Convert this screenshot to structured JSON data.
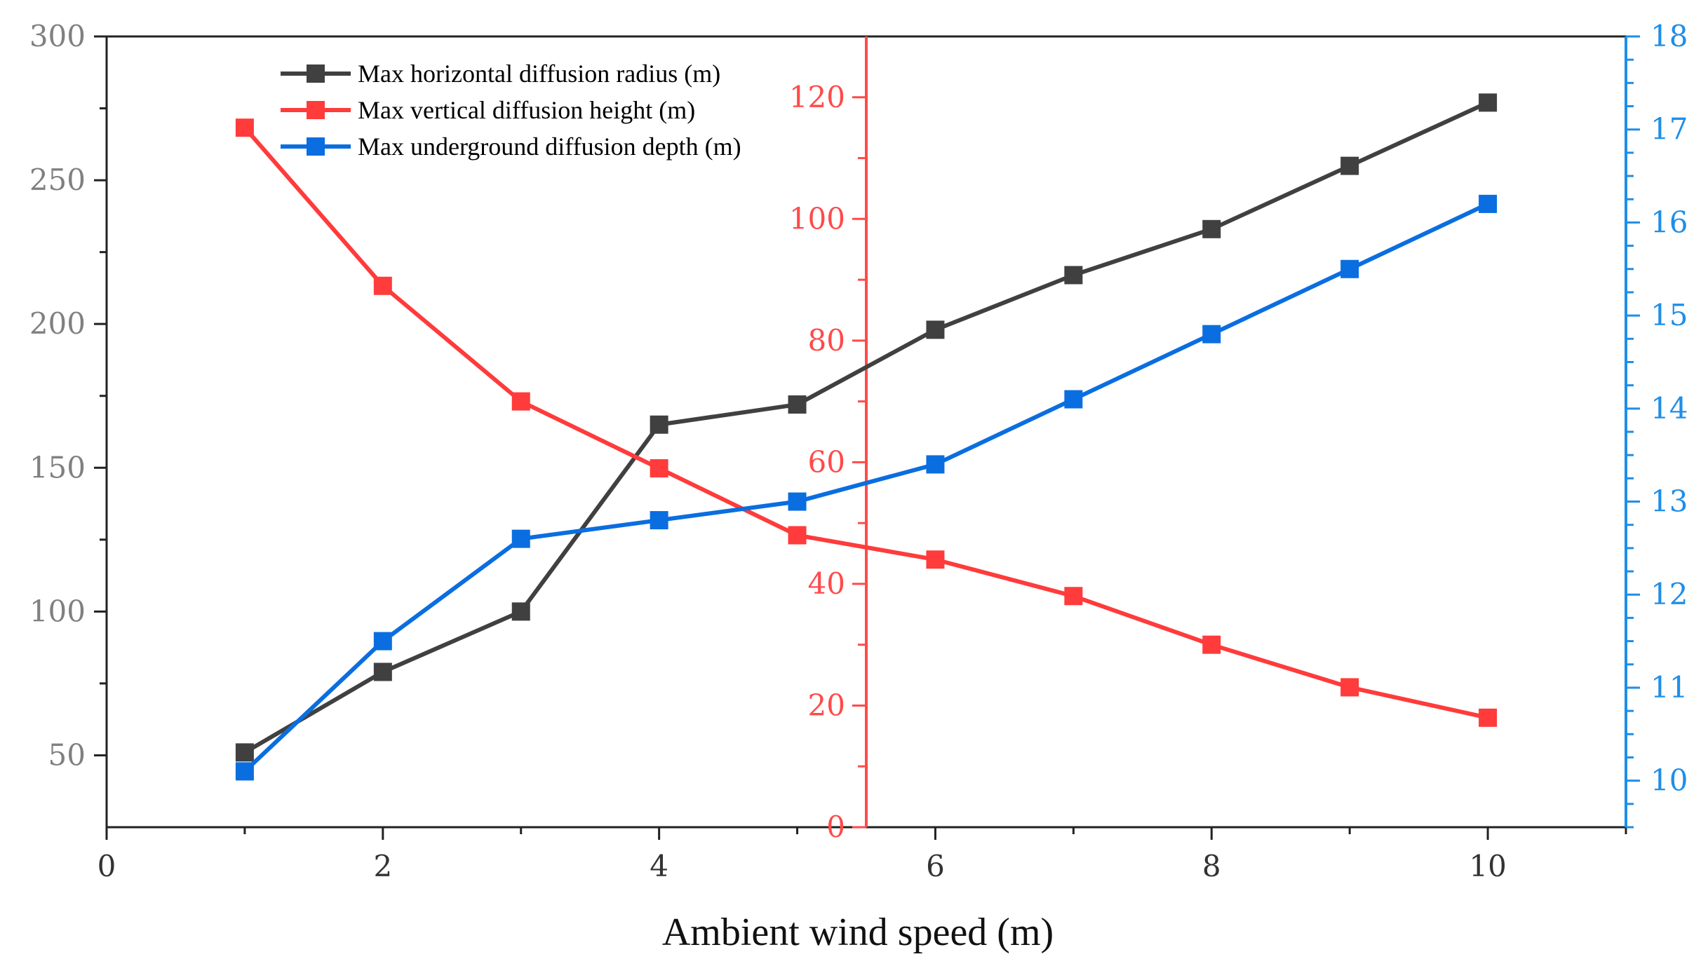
{
  "chart_data": {
    "type": "line",
    "title": "",
    "xlabel": "Ambient wind speed (m)",
    "xlim": [
      0,
      11
    ],
    "xticks": [
      0,
      2,
      4,
      6,
      8,
      10
    ],
    "x": [
      1,
      2,
      3,
      4,
      5,
      6,
      7,
      8,
      9,
      10
    ],
    "axes": {
      "left": {
        "ylim": [
          25,
          300
        ],
        "ticks": [
          50,
          100,
          150,
          200,
          250,
          300
        ],
        "color": "#808080"
      },
      "middle": {
        "ylim": [
          0,
          130
        ],
        "ticks": [
          0,
          20,
          40,
          60,
          80,
          100,
          120
        ],
        "color": "#ff4a4a",
        "position_x": 5.5
      },
      "right": {
        "ylim": [
          9.5,
          18
        ],
        "ticks": [
          10,
          11,
          12,
          13,
          14,
          15,
          16,
          17,
          18
        ],
        "color": "#1e8ee8"
      }
    },
    "series": [
      {
        "name": "Max horizontal diffusion radius (m)",
        "axis": "left",
        "color": "#404040",
        "values": [
          51,
          79,
          100,
          165,
          172,
          198,
          217,
          233,
          255,
          277
        ]
      },
      {
        "name": "Max vertical diffusion height (m)",
        "axis": "middle",
        "color": "#ff3b3b",
        "values": [
          115,
          89,
          70,
          59,
          48,
          44,
          38,
          30,
          23,
          18
        ]
      },
      {
        "name": "Max underground diffusion depth (m)",
        "axis": "right",
        "color": "#0a6ee0",
        "values": [
          10.1,
          11.5,
          12.6,
          12.8,
          13.0,
          13.4,
          14.1,
          14.8,
          15.5,
          16.2
        ]
      }
    ],
    "legend_position": "top-left"
  }
}
